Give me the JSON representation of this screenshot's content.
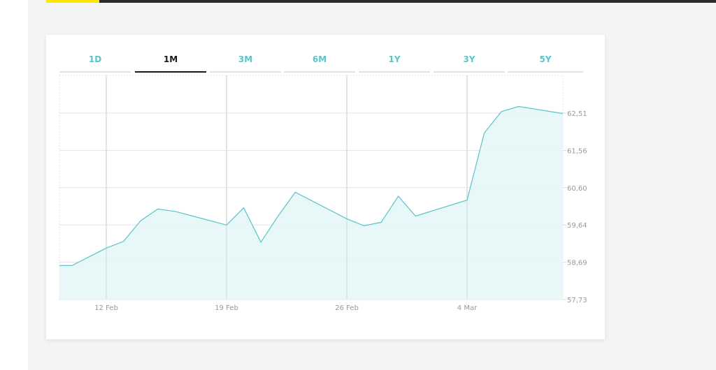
{
  "tabs": [
    {
      "label": "1D",
      "active": false
    },
    {
      "label": "1M",
      "active": true
    },
    {
      "label": "3M",
      "active": false
    },
    {
      "label": "6M",
      "active": false
    },
    {
      "label": "1Y",
      "active": false
    },
    {
      "label": "3Y",
      "active": false
    },
    {
      "label": "5Y",
      "active": false
    }
  ],
  "colors": {
    "line": "#5bc4c8",
    "fill": "#e5f6f6",
    "active_tab": "#1a1a1a",
    "tab": "#5bc4c8",
    "accent": "#ffe600"
  },
  "chart_data": {
    "type": "area",
    "title": "",
    "xlabel": "",
    "ylabel": "",
    "x_ticks": [
      "12 Feb",
      "19 Feb",
      "26 Feb",
      "4 Mar"
    ],
    "y_ticks": [
      "62,51",
      "61,56",
      "60,60",
      "59,64",
      "58,69",
      "57,73"
    ],
    "ylim": [
      57.73,
      62.51
    ],
    "grid": true,
    "series": [
      {
        "x": [
          "2024-02-09",
          "2024-02-10",
          "2024-02-12",
          "2024-02-13",
          "2024-02-14",
          "2024-02-15",
          "2024-02-16",
          "2024-02-19",
          "2024-02-20",
          "2024-02-21",
          "2024-02-22",
          "2024-02-23",
          "2024-02-26",
          "2024-02-27",
          "2024-02-28",
          "2024-02-29",
          "2024-03-01",
          "2024-03-04",
          "2024-03-05",
          "2024-03-06",
          "2024-03-07",
          "2024-03-08"
        ],
        "values": [
          58.6,
          58.6,
          59.05,
          59.22,
          59.75,
          60.05,
          59.99,
          59.64,
          60.08,
          59.2,
          59.87,
          60.48,
          59.8,
          59.62,
          59.71,
          60.38,
          59.87,
          60.28,
          62.0,
          62.55,
          62.68,
          62.5
        ]
      }
    ]
  }
}
